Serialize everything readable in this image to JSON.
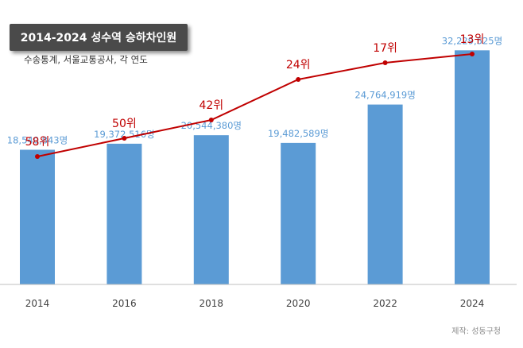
{
  "title": "2014-2024 성수역 승하차인원",
  "subtitle": "수송통계, 서울교통공사, 각 연도",
  "credit": "제작: 성동구청",
  "colors": {
    "bar": "#5b9bd5",
    "bar_label": "#5b9bd5",
    "line": "#c00000",
    "rank_label": "#c00000",
    "axis": "#bfbfbf",
    "tick_label": "#404040"
  },
  "chart_data": {
    "type": "bar",
    "categories": [
      "2014",
      "2016",
      "2018",
      "2020",
      "2022",
      "2024"
    ],
    "series": [
      {
        "type": "bar",
        "values": [
          18540843,
          19372516,
          20544380,
          19482589,
          24764919,
          32229525
        ],
        "labels": [
          "18,540,843명",
          "19,372,516명",
          "20,544,380명",
          "19,482,589명",
          "24,764,919명",
          "32,229,525명"
        ]
      },
      {
        "type": "line",
        "values": [
          58,
          50,
          42,
          24,
          17,
          13
        ],
        "labels": [
          "58위",
          "50위",
          "42위",
          "24위",
          "17위",
          "13위"
        ]
      }
    ],
    "ylim": [
      0,
      35000000
    ],
    "grid": false,
    "legend": "none"
  }
}
